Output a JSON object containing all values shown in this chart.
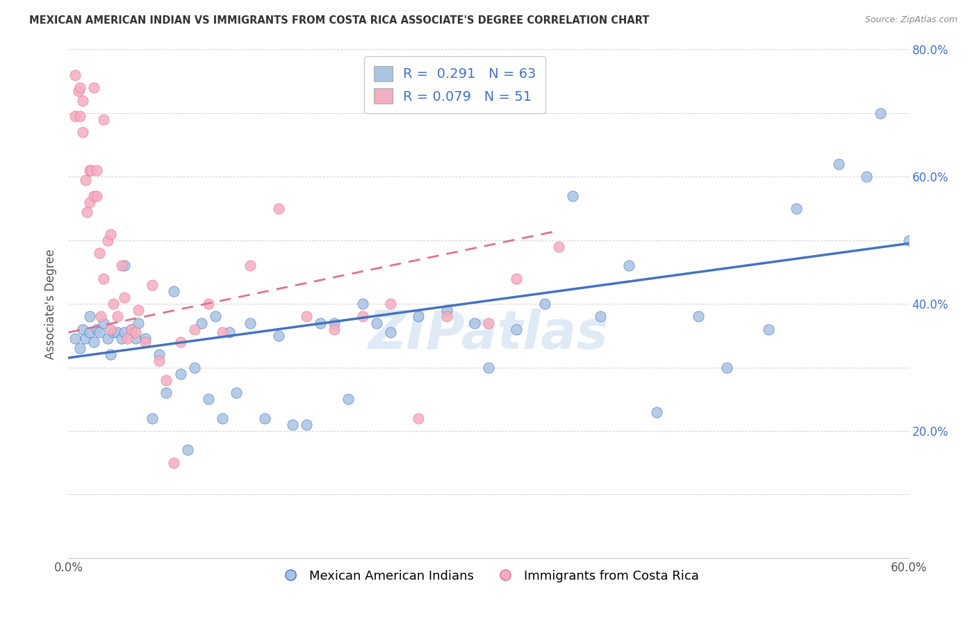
{
  "title": "MEXICAN AMERICAN INDIAN VS IMMIGRANTS FROM COSTA RICA ASSOCIATE'S DEGREE CORRELATION CHART",
  "source": "Source: ZipAtlas.com",
  "ylabel": "Associate's Degree",
  "x_min": 0.0,
  "x_max": 0.6,
  "y_min": 0.0,
  "y_max": 0.8,
  "x_ticks": [
    0.0,
    0.1,
    0.2,
    0.3,
    0.4,
    0.5,
    0.6
  ],
  "y_ticks": [
    0.0,
    0.1,
    0.2,
    0.3,
    0.4,
    0.5,
    0.6,
    0.7,
    0.8
  ],
  "watermark": "ZIPatlas",
  "series1_color": "#aac4e2",
  "series2_color": "#f5adc0",
  "line1_color": "#4472c4",
  "line2_color": "#e07090",
  "R1": 0.291,
  "N1": 63,
  "R2": 0.079,
  "N2": 51,
  "legend1_label": "Mexican American Indians",
  "legend2_label": "Immigrants from Costa Rica",
  "series1_x": [
    0.005,
    0.008,
    0.01,
    0.012,
    0.015,
    0.015,
    0.018,
    0.02,
    0.022,
    0.025,
    0.028,
    0.03,
    0.032,
    0.035,
    0.038,
    0.04,
    0.04,
    0.045,
    0.048,
    0.05,
    0.055,
    0.06,
    0.065,
    0.07,
    0.075,
    0.08,
    0.085,
    0.09,
    0.095,
    0.1,
    0.105,
    0.11,
    0.115,
    0.12,
    0.13,
    0.14,
    0.15,
    0.16,
    0.17,
    0.18,
    0.19,
    0.2,
    0.21,
    0.22,
    0.23,
    0.25,
    0.27,
    0.29,
    0.3,
    0.32,
    0.34,
    0.36,
    0.38,
    0.4,
    0.42,
    0.45,
    0.47,
    0.5,
    0.52,
    0.55,
    0.57,
    0.58,
    0.6
  ],
  "series1_y": [
    0.345,
    0.33,
    0.36,
    0.345,
    0.355,
    0.38,
    0.34,
    0.36,
    0.355,
    0.37,
    0.345,
    0.32,
    0.355,
    0.355,
    0.345,
    0.355,
    0.46,
    0.36,
    0.345,
    0.37,
    0.345,
    0.22,
    0.32,
    0.26,
    0.42,
    0.29,
    0.17,
    0.3,
    0.37,
    0.25,
    0.38,
    0.22,
    0.355,
    0.26,
    0.37,
    0.22,
    0.35,
    0.21,
    0.21,
    0.37,
    0.37,
    0.25,
    0.4,
    0.37,
    0.355,
    0.38,
    0.39,
    0.37,
    0.3,
    0.36,
    0.4,
    0.57,
    0.38,
    0.46,
    0.23,
    0.38,
    0.3,
    0.36,
    0.55,
    0.62,
    0.6,
    0.7,
    0.5
  ],
  "series2_x": [
    0.005,
    0.005,
    0.007,
    0.008,
    0.008,
    0.01,
    0.01,
    0.012,
    0.013,
    0.015,
    0.015,
    0.016,
    0.018,
    0.018,
    0.02,
    0.02,
    0.022,
    0.023,
    0.025,
    0.025,
    0.028,
    0.03,
    0.03,
    0.032,
    0.035,
    0.038,
    0.04,
    0.042,
    0.045,
    0.048,
    0.05,
    0.055,
    0.06,
    0.065,
    0.07,
    0.075,
    0.08,
    0.09,
    0.1,
    0.11,
    0.13,
    0.15,
    0.17,
    0.19,
    0.21,
    0.23,
    0.25,
    0.27,
    0.3,
    0.32,
    0.35
  ],
  "series2_y": [
    0.76,
    0.695,
    0.735,
    0.695,
    0.74,
    0.72,
    0.67,
    0.595,
    0.545,
    0.61,
    0.56,
    0.61,
    0.57,
    0.74,
    0.57,
    0.61,
    0.48,
    0.38,
    0.69,
    0.44,
    0.5,
    0.36,
    0.51,
    0.4,
    0.38,
    0.46,
    0.41,
    0.345,
    0.36,
    0.355,
    0.39,
    0.34,
    0.43,
    0.31,
    0.28,
    0.15,
    0.34,
    0.36,
    0.4,
    0.355,
    0.46,
    0.55,
    0.38,
    0.36,
    0.38,
    0.4,
    0.22,
    0.38,
    0.37,
    0.44,
    0.49
  ],
  "trendline1_x": [
    0.0,
    0.6
  ],
  "trendline1_y": [
    0.315,
    0.495
  ],
  "trendline2_x": [
    0.0,
    0.35
  ],
  "trendline2_y": [
    0.355,
    0.515
  ]
}
